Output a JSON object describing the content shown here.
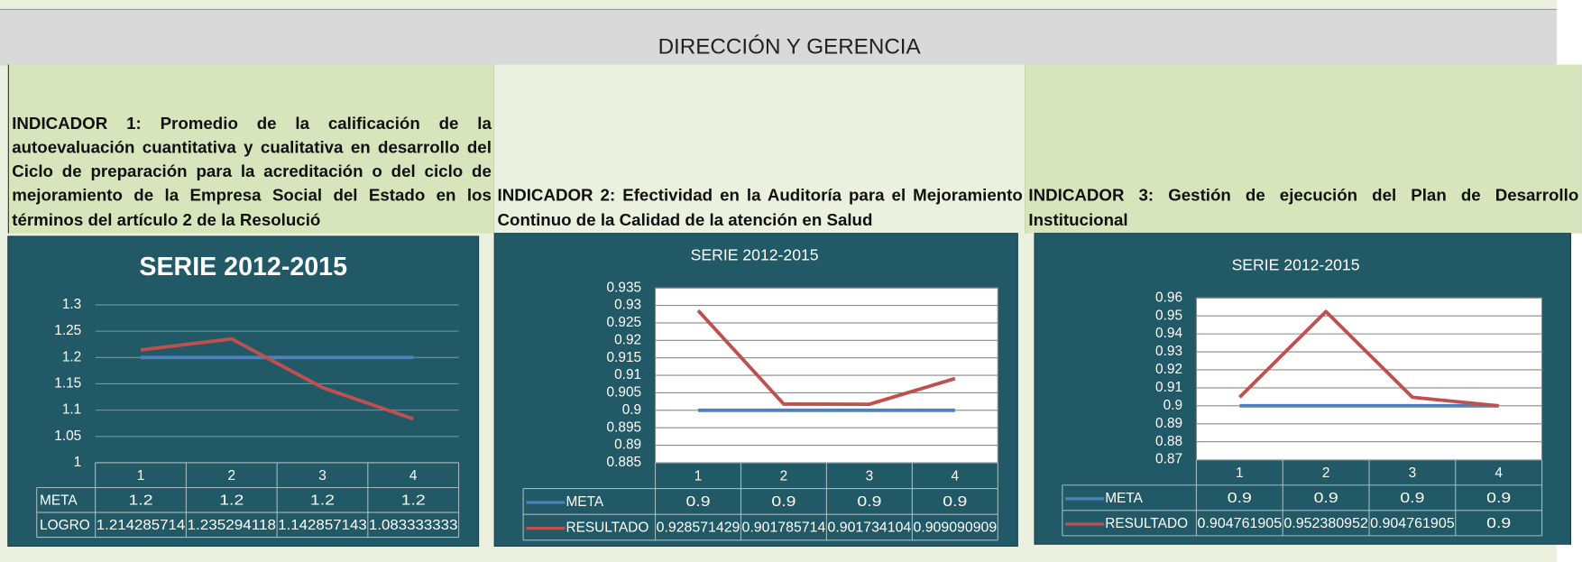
{
  "header": "DIRECCIÓN Y GERENCIA",
  "indicators": [
    "INDICADOR 1: Promedio de la calificación de la autoevaluación cuantitativa y cualitativa en desarrollo del Ciclo de preparación para la acreditación o del ciclo de mejoramiento de la Empresa Social del Estado en los términos del artículo 2 de la Resolució",
    "INDICADOR 2: Efectividad en la Auditoría para el Mejoramiento Continuo de la Calidad de la atención en Salud",
    "INDICADOR 3: Gestión de ejecución del Plan de Desarrollo Institucional"
  ],
  "chart_data": [
    {
      "type": "line",
      "title": "SERIE  2012-2015",
      "categories": [
        "1",
        "2",
        "3",
        "4"
      ],
      "series": [
        {
          "name": "META",
          "color": "#4f81bd",
          "values": [
            1.2,
            1.2,
            1.2,
            1.2
          ]
        },
        {
          "name": "LOGRO",
          "color": "#c0504d",
          "values": [
            1.214285714,
            1.235294118,
            1.142857143,
            1.083333333
          ]
        }
      ],
      "ylim": [
        1,
        1.3
      ],
      "yticks": [
        1,
        1.05,
        1.1,
        1.15,
        1.2,
        1.25,
        1.3
      ],
      "grid": true,
      "legend_keys": false
    },
    {
      "type": "line",
      "title": "SERIE 2012-2015",
      "categories": [
        "1",
        "2",
        "3",
        "4"
      ],
      "series": [
        {
          "name": "META",
          "color": "#4f81bd",
          "values": [
            0.9,
            0.9,
            0.9,
            0.9
          ]
        },
        {
          "name": "RESULTADO",
          "color": "#c0504d",
          "values": [
            0.928571429,
            0.901785714,
            0.901734104,
            0.909090909
          ]
        }
      ],
      "ylim": [
        0.885,
        0.935
      ],
      "yticks": [
        0.885,
        0.89,
        0.895,
        0.9,
        0.905,
        0.91,
        0.915,
        0.92,
        0.925,
        0.93,
        0.935
      ],
      "grid": true,
      "legend_keys": true,
      "plot_background": "#ffffff"
    },
    {
      "type": "line",
      "title": "SERIE 2012-2015",
      "categories": [
        "1",
        "2",
        "3",
        "4"
      ],
      "series": [
        {
          "name": "META",
          "color": "#4f81bd",
          "values": [
            0.9,
            0.9,
            0.9,
            0.9
          ]
        },
        {
          "name": "RESULTADO",
          "color": "#c0504d",
          "values": [
            0.904761905,
            0.952380952,
            0.904761905,
            0.9
          ]
        }
      ],
      "ylim": [
        0.87,
        0.96
      ],
      "yticks": [
        0.87,
        0.88,
        0.89,
        0.9,
        0.91,
        0.92,
        0.93,
        0.94,
        0.95,
        0.96
      ],
      "grid": true,
      "legend_keys": true,
      "plot_background": "#ffffff"
    }
  ]
}
